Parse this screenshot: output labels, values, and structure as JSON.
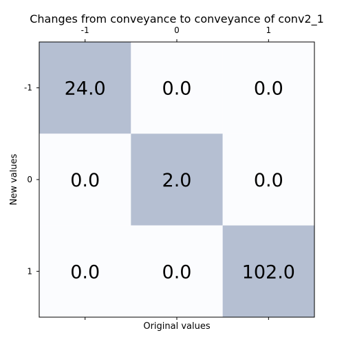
{
  "chart_data": {
    "type": "heatmap",
    "title": "Changes from conveyance to conveyance of conv2_1",
    "xlabel": "Original values",
    "ylabel": "New values",
    "x_categories": [
      "-1",
      "0",
      "1"
    ],
    "y_categories": [
      "-1",
      "0",
      "1"
    ],
    "values": [
      [
        24.0,
        0.0,
        0.0
      ],
      [
        0.0,
        2.0,
        0.0
      ],
      [
        0.0,
        0.0,
        102.0
      ]
    ],
    "value_labels": [
      [
        "24.0",
        "0.0",
        "0.0"
      ],
      [
        "0.0",
        "2.0",
        "0.0"
      ],
      [
        "0.0",
        "0.0",
        "102.0"
      ]
    ],
    "x_ticks_position": "top",
    "grid": false,
    "colors": {
      "high": "#b5bfd2",
      "low": "#fbfcfe",
      "axis": "#000000"
    }
  }
}
